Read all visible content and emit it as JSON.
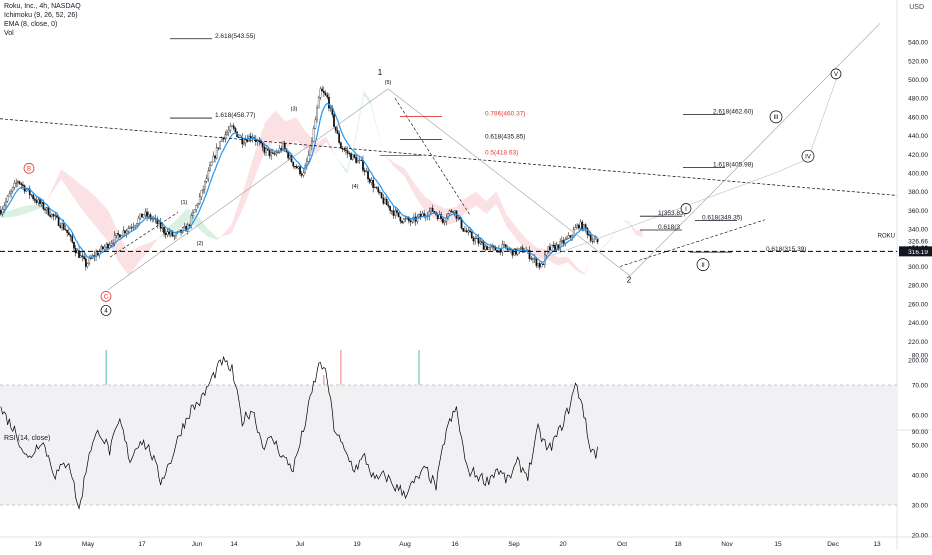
{
  "legend": {
    "symbol": "Roku, Inc., 4h, NASDAQ",
    "ichimoku": "Ichimoku (9, 26, 52, 26)",
    "ema": "EMA (8, close, 0)",
    "vol": "Vol",
    "rsi": "RSI (14, close)",
    "currency": "USD"
  },
  "colors": {
    "candle_up": "#26a69a",
    "candle_down": "#ef5350",
    "ema": "#2196f3",
    "cloud_green": "#b9e6c9",
    "cloud_red": "#f8c9cc",
    "fib_red": "#e53935",
    "price_tag": "#131722"
  },
  "chart_data": {
    "type": "candlestick",
    "ylim": [
      180,
      560
    ],
    "yticks": [
      200,
      220,
      240,
      260,
      280,
      300,
      320,
      340,
      360,
      380,
      400,
      420,
      440,
      460,
      480,
      500,
      520,
      540
    ],
    "rsi_ylim": [
      20,
      80
    ],
    "rsi_yticks": [
      20,
      30,
      40,
      50,
      60,
      70,
      80
    ],
    "rsi_tick_labels": [
      "20.00",
      "30.00",
      "40.00",
      "50.00",
      "60.00",
      "70.00",
      "80.00"
    ],
    "xticks": [
      "19",
      "May",
      "17",
      "Jun",
      "14",
      "Jul",
      "19",
      "Aug",
      "16",
      "Sep",
      "20",
      "Oct",
      "18",
      "Nov",
      "15",
      "Dec",
      "13"
    ],
    "volume_axis_label": "90.00",
    "last_price": "316.19",
    "roku_tag": "ROKU",
    "roku_price": "326.66",
    "roku_time": "51:22",
    "key_points": [
      [
        0,
        360
      ],
      [
        10,
        392
      ],
      [
        20,
        372
      ],
      [
        30,
        355
      ],
      [
        38,
        340
      ],
      [
        44,
        318
      ],
      [
        50,
        302
      ],
      [
        55,
        312
      ],
      [
        62,
        322
      ],
      [
        70,
        335
      ],
      [
        78,
        345
      ],
      [
        84,
        356
      ],
      [
        90,
        350
      ],
      [
        96,
        338
      ],
      [
        102,
        332
      ],
      [
        110,
        342
      ],
      [
        118,
        378
      ],
      [
        124,
        410
      ],
      [
        130,
        438
      ],
      [
        136,
        448
      ],
      [
        142,
        435
      ],
      [
        148,
        440
      ],
      [
        154,
        426
      ],
      [
        160,
        418
      ],
      [
        166,
        428
      ],
      [
        172,
        410
      ],
      [
        178,
        398
      ],
      [
        182,
        425
      ],
      [
        188,
        488
      ],
      [
        192,
        480
      ],
      [
        196,
        452
      ],
      [
        200,
        428
      ],
      [
        206,
        418
      ],
      [
        212,
        410
      ],
      [
        218,
        390
      ],
      [
        224,
        372
      ],
      [
        230,
        360
      ],
      [
        236,
        350
      ],
      [
        242,
        348
      ],
      [
        248,
        355
      ],
      [
        254,
        360
      ],
      [
        260,
        350
      ],
      [
        266,
        362
      ],
      [
        272,
        340
      ],
      [
        278,
        330
      ],
      [
        284,
        322
      ],
      [
        290,
        318
      ],
      [
        296,
        320
      ],
      [
        302,
        315
      ],
      [
        308,
        318
      ],
      [
        314,
        306
      ],
      [
        318,
        300
      ],
      [
        322,
        318
      ],
      [
        328,
        322
      ],
      [
        334,
        330
      ],
      [
        340,
        345
      ],
      [
        344,
        340
      ],
      [
        348,
        328
      ],
      [
        351,
        326
      ]
    ],
    "rsi_points": [
      [
        0,
        62
      ],
      [
        8,
        55
      ],
      [
        16,
        45
      ],
      [
        24,
        52
      ],
      [
        32,
        40
      ],
      [
        40,
        45
      ],
      [
        46,
        28
      ],
      [
        52,
        48
      ],
      [
        58,
        55
      ],
      [
        64,
        48
      ],
      [
        70,
        58
      ],
      [
        76,
        45
      ],
      [
        82,
        52
      ],
      [
        88,
        48
      ],
      [
        94,
        38
      ],
      [
        100,
        45
      ],
      [
        106,
        55
      ],
      [
        112,
        62
      ],
      [
        118,
        65
      ],
      [
        124,
        72
      ],
      [
        130,
        78
      ],
      [
        136,
        75
      ],
      [
        142,
        58
      ],
      [
        148,
        62
      ],
      [
        154,
        50
      ],
      [
        160,
        52
      ],
      [
        166,
        46
      ],
      [
        172,
        42
      ],
      [
        178,
        55
      ],
      [
        184,
        70
      ],
      [
        188,
        78
      ],
      [
        192,
        72
      ],
      [
        196,
        56
      ],
      [
        202,
        48
      ],
      [
        208,
        42
      ],
      [
        214,
        46
      ],
      [
        220,
        38
      ],
      [
        226,
        40
      ],
      [
        232,
        36
      ],
      [
        238,
        34
      ],
      [
        244,
        38
      ],
      [
        250,
        42
      ],
      [
        256,
        36
      ],
      [
        262,
        55
      ],
      [
        268,
        62
      ],
      [
        274,
        42
      ],
      [
        280,
        40
      ],
      [
        286,
        38
      ],
      [
        292,
        42
      ],
      [
        298,
        38
      ],
      [
        304,
        44
      ],
      [
        310,
        40
      ],
      [
        316,
        55
      ],
      [
        322,
        48
      ],
      [
        328,
        54
      ],
      [
        334,
        62
      ],
      [
        338,
        70
      ],
      [
        342,
        64
      ],
      [
        346,
        50
      ],
      [
        350,
        47
      ],
      [
        352,
        50
      ]
    ],
    "volume_markers": [
      "E",
      "E",
      "E",
      "E"
    ],
    "annotations": {
      "waves": [
        "1",
        "2",
        "B",
        "C",
        "4",
        "I",
        "II",
        "III",
        "IV",
        "V",
        "(3)",
        "(5)",
        "(4)",
        "(1)",
        "(2)"
      ],
      "fib_levels": [
        {
          "label": "2.618(543.55)",
          "value": 543.55,
          "color": "#131722"
        },
        {
          "label": "1.618(458.77)",
          "value": 458.77,
          "color": "#131722"
        },
        {
          "label": "0.786(460.37)",
          "value": 460.37,
          "color": "#e53935"
        },
        {
          "label": "0.618(435.85)",
          "value": 435.85,
          "color": "#131722"
        },
        {
          "label": "0.5(418.63)",
          "value": 418.63,
          "color": "#e53935"
        },
        {
          "label": "2.618(462.60)",
          "value": 462.6,
          "color": "#131722"
        },
        {
          "label": "1.618(405.98)",
          "value": 405.98,
          "color": "#131722"
        },
        {
          "label": "1(353.83)",
          "value": 353.83,
          "color": "#131722"
        },
        {
          "label": "0.618(349.35)",
          "value": 349.35,
          "color": "#131722"
        },
        {
          "label": "0.618(3",
          "value": 339,
          "color": "#131722"
        },
        {
          "label": "0.618(315.39)",
          "value": 315.39,
          "color": "#131722"
        }
      ]
    }
  }
}
